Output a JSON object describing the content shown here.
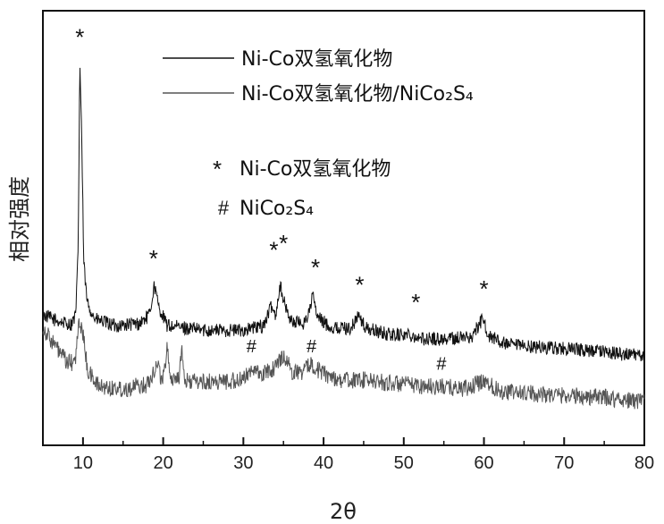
{
  "chart_data": {
    "type": "line",
    "xlabel": "2θ",
    "ylabel": "相对强度",
    "xlim": [
      5,
      80
    ],
    "ylim": [
      0,
      100
    ],
    "xticks": [
      10,
      20,
      30,
      40,
      50,
      60,
      70,
      80
    ],
    "y_tick_labels_shown": false,
    "grid": false,
    "legend_position": "top-right",
    "series": [
      {
        "name": "Ni-Co双氢氧化物",
        "color": "#111111",
        "noise": 1.6,
        "points": [
          [
            5,
            30
          ],
          [
            7,
            28.5
          ],
          [
            8.5,
            27.8
          ],
          [
            9.1,
            30
          ],
          [
            9.4,
            45
          ],
          [
            9.6,
            88
          ],
          [
            9.8,
            75
          ],
          [
            10.1,
            42
          ],
          [
            10.5,
            33
          ],
          [
            11.5,
            29
          ],
          [
            14,
            27.5
          ],
          [
            17,
            28
          ],
          [
            18.3,
            30
          ],
          [
            18.9,
            37
          ],
          [
            19.4,
            32
          ],
          [
            20.5,
            27.5
          ],
          [
            25,
            26.5
          ],
          [
            30,
            26.5
          ],
          [
            32.5,
            27.5
          ],
          [
            33.5,
            32
          ],
          [
            34,
            30
          ],
          [
            34.6,
            37
          ],
          [
            35.2,
            32
          ],
          [
            36,
            28.5
          ],
          [
            37.5,
            28
          ],
          [
            38.3,
            31
          ],
          [
            38.6,
            35
          ],
          [
            39.2,
            29.5
          ],
          [
            41,
            27
          ],
          [
            43.5,
            27
          ],
          [
            44.3,
            30
          ],
          [
            45.2,
            27
          ],
          [
            48,
            25.5
          ],
          [
            51,
            25.5
          ],
          [
            52,
            24.5
          ],
          [
            55,
            24.5
          ],
          [
            58.5,
            25
          ],
          [
            59.8,
            29
          ],
          [
            60.7,
            25
          ],
          [
            63,
            23
          ],
          [
            68,
            22.5
          ],
          [
            75,
            21.5
          ],
          [
            80,
            20.5
          ]
        ]
      },
      {
        "name": "Ni-Co双氢氧化物/NiCo₂S₄",
        "color": "#555555",
        "noise": 2.0,
        "points": [
          [
            5,
            27
          ],
          [
            6.5,
            23
          ],
          [
            8,
            19
          ],
          [
            9,
            19
          ],
          [
            9.5,
            28
          ],
          [
            9.9,
            27
          ],
          [
            10.6,
            17
          ],
          [
            12,
            13.5
          ],
          [
            15,
            13
          ],
          [
            18,
            14
          ],
          [
            19.3,
            19
          ],
          [
            19.8,
            15
          ],
          [
            20.2,
            17
          ],
          [
            20.5,
            24
          ],
          [
            20.9,
            15
          ],
          [
            22,
            16
          ],
          [
            22.3,
            22
          ],
          [
            22.6,
            15
          ],
          [
            25,
            14.5
          ],
          [
            30,
            15
          ],
          [
            31,
            18
          ],
          [
            32,
            16
          ],
          [
            34,
            18
          ],
          [
            35,
            21
          ],
          [
            36,
            17
          ],
          [
            37.5,
            17
          ],
          [
            38.5,
            19
          ],
          [
            39.5,
            17
          ],
          [
            42,
            15
          ],
          [
            45,
            15
          ],
          [
            50,
            14
          ],
          [
            54,
            13.5
          ],
          [
            58,
            13
          ],
          [
            60,
            15
          ],
          [
            62,
            12.5
          ],
          [
            65,
            12
          ],
          [
            70,
            11.5
          ],
          [
            75,
            11
          ],
          [
            80,
            10
          ]
        ]
      }
    ],
    "legend": [
      {
        "label": "Ni-Co双氢氧化物",
        "color": "#111111"
      },
      {
        "label": "Ni-Co双氢氧化物/NiCo₂S₄",
        "color": "#555555"
      }
    ],
    "annotations": [
      {
        "symbol": "*",
        "text": "Ni-Co双氢氧化物"
      },
      {
        "symbol": "#",
        "text": "NiCo₂S₄"
      }
    ],
    "peak_markers": [
      {
        "symbol": "*",
        "x": 9.6,
        "y": 95
      },
      {
        "symbol": "*",
        "x": 18.8,
        "y": 44
      },
      {
        "symbol": "*",
        "x": 33.8,
        "y": 46
      },
      {
        "symbol": "*",
        "x": 35.0,
        "y": 47.5
      },
      {
        "symbol": "*",
        "x": 39.0,
        "y": 42
      },
      {
        "symbol": "*",
        "x": 44.5,
        "y": 38
      },
      {
        "symbol": "*",
        "x": 51.5,
        "y": 34
      },
      {
        "symbol": "*",
        "x": 60.0,
        "y": 37
      },
      {
        "symbol": "#",
        "x": 31.0,
        "y": 23
      },
      {
        "symbol": "#",
        "x": 38.5,
        "y": 23
      },
      {
        "symbol": "#",
        "x": 54.7,
        "y": 19
      }
    ]
  }
}
